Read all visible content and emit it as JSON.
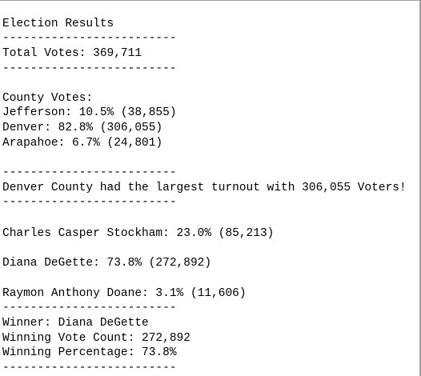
{
  "lines": [
    "Election Results",
    "-------------------------",
    "Total Votes: 369,711",
    "-------------------------",
    "County Votes:",
    "Jefferson: 10.5% (38,855)",
    "Denver: 82.8% (306,055)",
    "Arapahoe: 6.7% (24,801)",
    "-------------------------",
    "Denver County had the largest turnout with 306,055 Voters!",
    "-------------------------",
    "Charles Casper Stockham: 23.0% (85,213)",
    "Diana DeGette: 73.8% (272,892)",
    "Raymon Anthony Doane: 3.1% (11,606)",
    "-------------------------",
    "Winner: Diana DeGette",
    "Winning Vote Count: 272,892",
    "Winning Percentage: 73.8%",
    "-------------------------"
  ]
}
